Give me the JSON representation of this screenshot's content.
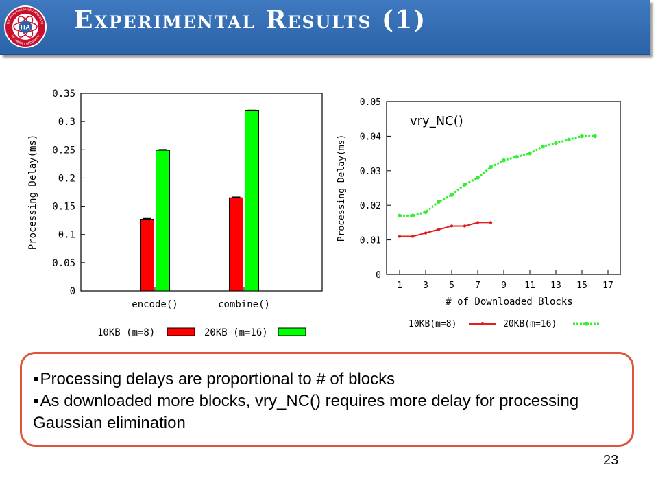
{
  "slide": {
    "title": "Experimental Results (1)",
    "page_number": "23",
    "logo": {
      "center_text": "ITA",
      "ring_text_top": "UK Army Research Laboratory",
      "ring_text_bottom": "UK Ministry of Defence",
      "colors": {
        "ring": "#c8102e",
        "center": "#2b63a8"
      }
    }
  },
  "bullets": [
    "Processing delays are proportional to # of blocks",
    "As downloaded more blocks, vry_NC() requires more delay for processing Gaussian elimination"
  ],
  "chart_data": [
    {
      "type": "bar",
      "categories": [
        "encode()",
        "combine()"
      ],
      "series": [
        {
          "name": "10KB (m=8)",
          "values": [
            0.127,
            0.165
          ],
          "color": "#ff0000"
        },
        {
          "name": "20KB (m=16)",
          "values": [
            0.249,
            0.319
          ],
          "color": "#00ff00"
        }
      ],
      "ylabel": "Processing Delay(ms)",
      "xlabel": "",
      "ylim": [
        0,
        0.35
      ],
      "yticks": [
        "0",
        "0.05",
        "0.1",
        "0.15",
        "0.2",
        "0.25",
        "0.3",
        "0.35"
      ],
      "error_bars": true,
      "legend": "bottom"
    },
    {
      "type": "line",
      "annotation": "vry_NC()",
      "series": [
        {
          "name": "10KB(m=8)",
          "x": [
            1,
            2,
            3,
            4,
            5,
            6,
            7,
            8
          ],
          "y": [
            0.011,
            0.011,
            0.012,
            0.013,
            0.014,
            0.014,
            0.015,
            0.015
          ],
          "color": "#e02020"
        },
        {
          "name": "20KB(m=16)",
          "x": [
            1,
            2,
            3,
            4,
            5,
            6,
            7,
            8,
            9,
            10,
            11,
            12,
            13,
            14,
            15,
            16
          ],
          "y": [
            0.017,
            0.017,
            0.018,
            0.021,
            0.023,
            0.026,
            0.028,
            0.031,
            0.033,
            0.034,
            0.035,
            0.037,
            0.038,
            0.039,
            0.04,
            0.04
          ],
          "color": "#33ee33"
        }
      ],
      "xlabel": "# of Downloaded Blocks",
      "ylabel": "Processing Delay(ms)",
      "xlim": [
        0,
        18
      ],
      "ylim": [
        0,
        0.05
      ],
      "xticks": [
        "1",
        "3",
        "5",
        "7",
        "9",
        "11",
        "13",
        "15",
        "17"
      ],
      "yticks": [
        "0",
        "0.01",
        "0.02",
        "0.03",
        "0.04",
        "0.05"
      ],
      "legend": "bottom"
    }
  ]
}
